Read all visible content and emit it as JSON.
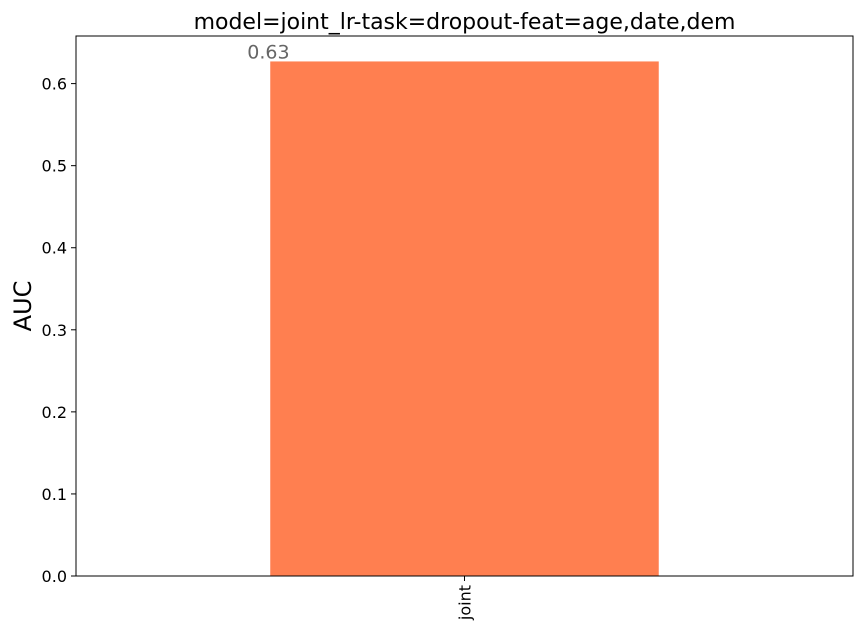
{
  "chart_data": {
    "type": "bar",
    "title": "model=joint_lr-task=dropout-feat=age,date,dem",
    "xlabel": "",
    "ylabel": "AUC",
    "categories": [
      "joint"
    ],
    "values": [
      0.627
    ],
    "data_labels": [
      "0.63"
    ],
    "ylim": [
      0,
      0.658
    ],
    "yticks": [
      0.0,
      0.1,
      0.2,
      0.3,
      0.4,
      0.5,
      0.6
    ],
    "ytick_labels": [
      "0.0",
      "0.1",
      "0.2",
      "0.3",
      "0.4",
      "0.5",
      "0.6"
    ],
    "x_tick_rotation": "vertical",
    "bar_color": "#ff7f50",
    "data_label_color": "#666666",
    "grid": false,
    "legend": "none"
  }
}
